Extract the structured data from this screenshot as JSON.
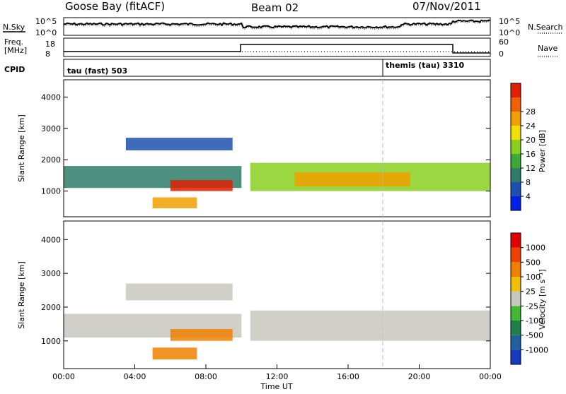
{
  "header": {
    "station": "Goose Bay (fitACF)",
    "beam": "Beam 02",
    "date": "07/Nov/2011"
  },
  "top_strip": {
    "nsky_label": "N.Sky",
    "nsearch_label": "N.Search",
    "freq_label_line1": "Freq.",
    "freq_label_line2": "[MHz]",
    "nave_label": "Nave",
    "cpid_label": "CPID",
    "noise_ticks_left": [
      "10^5",
      "10^0"
    ],
    "noise_ticks_right": [
      "10^5",
      "10^0"
    ],
    "freq_ticks_left": [
      "18",
      "8"
    ],
    "nave_ticks_right": [
      "60",
      "0"
    ],
    "cpid_modes": [
      {
        "name": "tau (fast) 503",
        "start_hour": 0
      },
      {
        "name": "themis (tau) 3310",
        "start_hour": 18
      }
    ]
  },
  "chart_data": [
    {
      "type": "heatmap",
      "panel": "power",
      "ylabel": "Slant Range [km]",
      "ylim": [
        180,
        4550
      ],
      "yticks": [
        "1000",
        "2000",
        "3000",
        "4000"
      ],
      "xlim": [
        0,
        24
      ],
      "colorbar_label": "Power [dB]",
      "colorbar_ticks": [
        "4",
        "8",
        "12",
        "16",
        "20",
        "24",
        "28"
      ],
      "colors": [
        "#0020e8",
        "#1c50b0",
        "#2f7c68",
        "#3ca838",
        "#88d020",
        "#f0e000",
        "#f0a000",
        "#f06000",
        "#e02000"
      ],
      "regions": [
        {
          "t0": 0.0,
          "t1": 10.0,
          "r0": 1100,
          "r1": 1800,
          "level": 2
        },
        {
          "t0": 3.5,
          "t1": 9.5,
          "r0": 2300,
          "r1": 2700,
          "level": 1
        },
        {
          "t0": 6.0,
          "t1": 9.5,
          "r0": 1000,
          "r1": 1350,
          "level": 8
        },
        {
          "t0": 5.0,
          "t1": 7.5,
          "r0": 450,
          "r1": 800,
          "level": 6
        },
        {
          "t0": 10.5,
          "t1": 24.0,
          "r0": 1000,
          "r1": 1900,
          "level": 4
        },
        {
          "t0": 13.0,
          "t1": 19.5,
          "r0": 1150,
          "r1": 1600,
          "level": 6
        }
      ]
    },
    {
      "type": "heatmap",
      "panel": "velocity",
      "ylabel": "Slant Range [km]",
      "ylim": [
        180,
        4550
      ],
      "yticks": [
        "1000",
        "2000",
        "3000",
        "4000"
      ],
      "xlim": [
        0,
        24
      ],
      "colorbar_label": "Velocity [m s⁻¹]",
      "colorbar_ticks": [
        "1000",
        "500",
        "100",
        "25",
        "-25",
        "-100",
        "-500",
        "-1000"
      ],
      "colors": [
        "#1838c0",
        "#2060a0",
        "#208048",
        "#40b830",
        "#c8c8c0",
        "#f0c000",
        "#f08000",
        "#f04000",
        "#e00000"
      ],
      "regions": [
        {
          "t0": 0.0,
          "t1": 10.0,
          "r0": 1100,
          "r1": 1800,
          "level": 4
        },
        {
          "t0": 3.5,
          "t1": 9.5,
          "r0": 2200,
          "r1": 2700,
          "level": 4
        },
        {
          "t0": 6.0,
          "t1": 9.5,
          "r0": 1000,
          "r1": 1350,
          "level": 6
        },
        {
          "t0": 5.0,
          "t1": 7.5,
          "r0": 450,
          "r1": 800,
          "level": 6
        },
        {
          "t0": 10.5,
          "t1": 24.0,
          "r0": 1000,
          "r1": 1900,
          "level": 4
        }
      ]
    }
  ],
  "x_axis": {
    "ticks": [
      "00:00",
      "04:00",
      "08:00",
      "12:00",
      "16:00",
      "20:00",
      "00:00"
    ],
    "label": "Time UT"
  }
}
